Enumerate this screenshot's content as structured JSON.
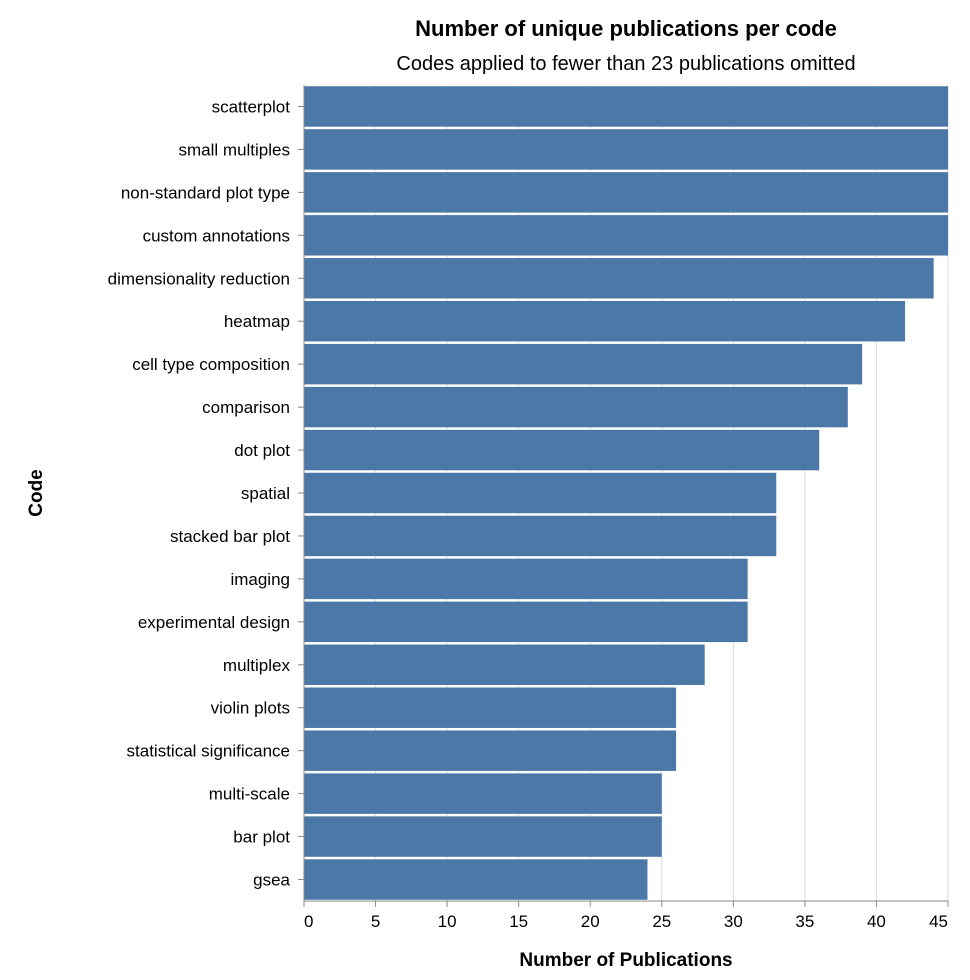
{
  "chart_data": {
    "type": "bar",
    "orientation": "horizontal",
    "title": "Number of unique publications per code",
    "subtitle": "Codes applied to fewer than 23 publications omitted",
    "xlabel": "Number of Publications",
    "ylabel": "Code",
    "xlim": [
      0,
      45
    ],
    "xticks": [
      0,
      5,
      10,
      15,
      20,
      25,
      30,
      35,
      40,
      45
    ],
    "grid": true,
    "bar_color": "#4c78a8",
    "categories": [
      "scatterplot",
      "small multiples",
      "non-standard plot type",
      "custom annotations",
      "dimensionality reduction",
      "heatmap",
      "cell type composition",
      "comparison",
      "dot plot",
      "spatial",
      "stacked bar plot",
      "imaging",
      "experimental design",
      "multiplex",
      "violin plots",
      "statistical significance",
      "multi-scale",
      "bar plot",
      "gsea"
    ],
    "values": [
      45,
      45,
      45,
      45,
      44,
      42,
      39,
      38,
      36,
      33,
      33,
      31,
      31,
      28,
      26,
      26,
      25,
      25,
      24
    ]
  }
}
